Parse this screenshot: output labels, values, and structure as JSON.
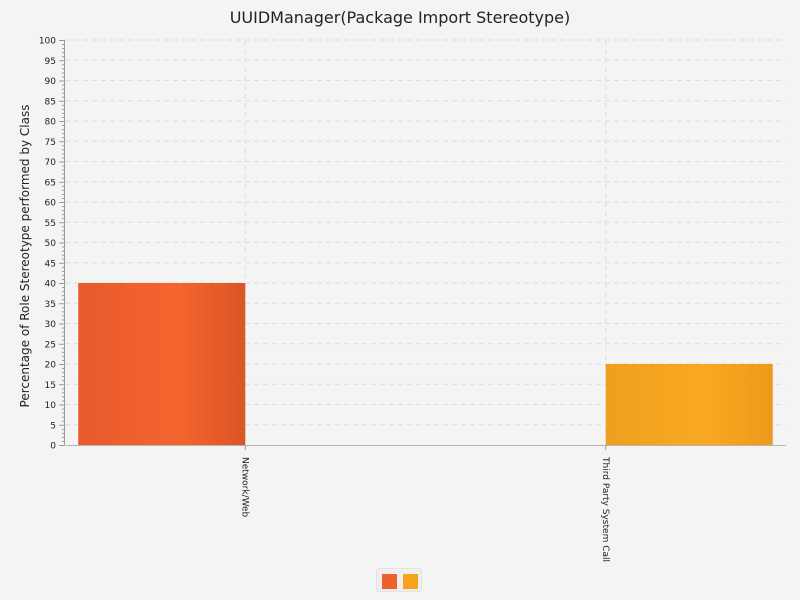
{
  "chart_data": {
    "type": "bar",
    "title": "UUIDManager(Package Import Stereotype)",
    "xlabel": "",
    "ylabel": "Percentage of Role Stereotype performed by Class",
    "categories": [
      "Network/Web",
      "Third Party System Call"
    ],
    "series": [
      {
        "values": [
          40,
          0
        ],
        "color": "#f0602d"
      },
      {
        "values": [
          0,
          20
        ],
        "color": "#f7a21f"
      }
    ],
    "ylim": [
      0,
      100
    ],
    "y_major_step": 5,
    "y_minor_step": 1,
    "grid": true,
    "legend": "bottom-center"
  }
}
